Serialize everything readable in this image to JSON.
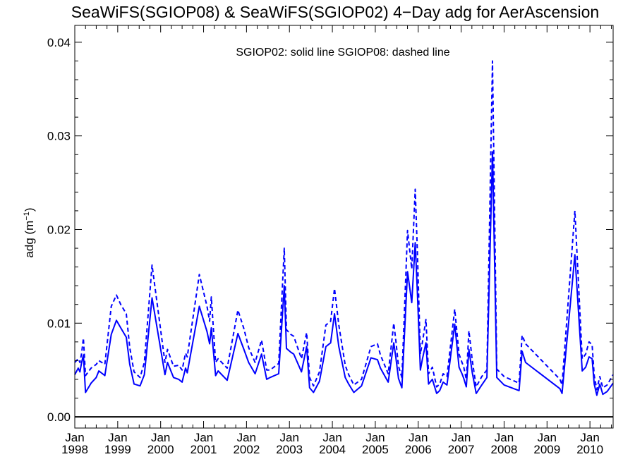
{
  "chart_data": {
    "type": "line",
    "title": "SeaWiFS(SGIOP08) & SeaWiFS(SGIOP02) 4−Day adg for AerAscension",
    "annotation": "SGIOP02: solid line   SGIOP08: dashed line",
    "ylabel": "adg (m",
    "ylabel_unit_exp": "−1",
    "ylabel_close": ")",
    "xlabel": "",
    "xlim": [
      1998.0,
      2010.54
    ],
    "ylim": [
      -0.0012,
      0.0418
    ],
    "grid": false,
    "yticks": [
      {
        "value": 0.0,
        "label": "0.00"
      },
      {
        "value": 0.01,
        "label": "0.01"
      },
      {
        "value": 0.02,
        "label": "0.02"
      },
      {
        "value": 0.03,
        "label": "0.03"
      },
      {
        "value": 0.04,
        "label": "0.04"
      }
    ],
    "xticks": [
      {
        "value": 1998,
        "month": "Jan",
        "year": "1998"
      },
      {
        "value": 1999,
        "month": "Jan",
        "year": "1999"
      },
      {
        "value": 2000,
        "month": "Jan",
        "year": "2000"
      },
      {
        "value": 2001,
        "month": "Jan",
        "year": "2001"
      },
      {
        "value": 2002,
        "month": "Jan",
        "year": "2002"
      },
      {
        "value": 2003,
        "month": "Jan",
        "year": "2003"
      },
      {
        "value": 2004,
        "month": "Jan",
        "year": "2004"
      },
      {
        "value": 2005,
        "month": "Jan",
        "year": "2005"
      },
      {
        "value": 2006,
        "month": "Jan",
        "year": "2006"
      },
      {
        "value": 2007,
        "month": "Jan",
        "year": "2007"
      },
      {
        "value": 2008,
        "month": "Jan",
        "year": "2008"
      },
      {
        "value": 2009,
        "month": "Jan",
        "year": "2009"
      },
      {
        "value": 2010,
        "month": "Jan",
        "year": "2010"
      }
    ],
    "reference_line_y": 0.0,
    "colors": {
      "series": "#0000ff",
      "axes": "#000000",
      "zero_line": "#000000"
    },
    "series": [
      {
        "style": "solid",
        "x": [
          1998.0,
          1998.08,
          1998.12,
          1998.16,
          1998.2,
          1998.25,
          1998.38,
          1998.5,
          1998.56,
          1998.7,
          1998.85,
          1998.97,
          1999.07,
          1999.2,
          1999.28,
          1999.38,
          1999.52,
          1999.62,
          1999.8,
          2000.1,
          2000.16,
          2000.3,
          2000.42,
          2000.5,
          2000.58,
          2000.62,
          2000.9,
          2001.08,
          2001.14,
          2001.18,
          2001.28,
          2001.34,
          2001.55,
          2001.8,
          2001.94,
          2002.05,
          2002.2,
          2002.35,
          2002.47,
          2002.55,
          2002.75,
          2002.88,
          2002.93,
          2003.03,
          2003.1,
          2003.28,
          2003.4,
          2003.47,
          2003.56,
          2003.7,
          2003.85,
          2003.96,
          2004.05,
          2004.15,
          2004.3,
          2004.38,
          2004.5,
          2004.68,
          2004.9,
          2005.05,
          2005.12,
          2005.3,
          2005.43,
          2005.48,
          2005.54,
          2005.62,
          2005.67,
          2005.75,
          2005.85,
          2005.93,
          2005.98,
          2006.05,
          2006.1,
          2006.18,
          2006.24,
          2006.33,
          2006.43,
          2006.5,
          2006.58,
          2006.67,
          2006.85,
          2006.95,
          2007.02,
          2007.06,
          2007.12,
          2007.18,
          2007.26,
          2007.35,
          2007.48,
          2007.6,
          2007.73,
          2007.83,
          2008.0,
          2008.35,
          2008.42,
          2008.5,
          2009.3,
          2009.35,
          2009.65,
          2009.82,
          2009.9,
          2009.98,
          2010.05,
          2010.1,
          2010.16,
          2010.23,
          2010.3,
          2010.4,
          2010.54
        ],
        "y": [
          0.0045,
          0.0052,
          0.0048,
          0.0058,
          0.0066,
          0.0026,
          0.0036,
          0.0042,
          0.0049,
          0.0044,
          0.0088,
          0.0103,
          0.0095,
          0.0085,
          0.0056,
          0.0035,
          0.0033,
          0.0045,
          0.0127,
          0.0045,
          0.0058,
          0.0042,
          0.004,
          0.0037,
          0.0052,
          0.0047,
          0.0118,
          0.0091,
          0.0078,
          0.0095,
          0.0044,
          0.0049,
          0.0039,
          0.0089,
          0.0072,
          0.0058,
          0.0046,
          0.0067,
          0.004,
          0.0042,
          0.0046,
          0.014,
          0.0073,
          0.0069,
          0.0067,
          0.0048,
          0.0075,
          0.0031,
          0.0026,
          0.0038,
          0.0075,
          0.0079,
          0.011,
          0.0075,
          0.0042,
          0.0035,
          0.0026,
          0.0033,
          0.0063,
          0.0061,
          0.0052,
          0.0037,
          0.0079,
          0.0063,
          0.0041,
          0.0031,
          0.0079,
          0.0155,
          0.0122,
          0.0186,
          0.0134,
          0.005,
          0.0062,
          0.0079,
          0.0035,
          0.004,
          0.0025,
          0.0028,
          0.0037,
          0.0034,
          0.0099,
          0.0053,
          0.0046,
          0.0041,
          0.0032,
          0.0072,
          0.0047,
          0.0025,
          0.0034,
          0.0042,
          0.0283,
          0.0042,
          0.0034,
          0.0028,
          0.007,
          0.0058,
          0.003,
          0.0025,
          0.0173,
          0.0049,
          0.0053,
          0.0064,
          0.0062,
          0.0035,
          0.0023,
          0.0035,
          0.0024,
          0.0027,
          0.0036
        ]
      },
      {
        "style": "dashed",
        "x": [
          1998.0,
          1998.08,
          1998.12,
          1998.16,
          1998.2,
          1998.25,
          1998.38,
          1998.5,
          1998.56,
          1998.7,
          1998.85,
          1998.97,
          1999.07,
          1999.2,
          1999.28,
          1999.38,
          1999.52,
          1999.62,
          1999.8,
          2000.1,
          2000.16,
          2000.3,
          2000.42,
          2000.5,
          2000.58,
          2000.62,
          2000.9,
          2001.08,
          2001.14,
          2001.18,
          2001.28,
          2001.34,
          2001.55,
          2001.8,
          2001.94,
          2002.05,
          2002.2,
          2002.35,
          2002.47,
          2002.55,
          2002.75,
          2002.88,
          2002.93,
          2003.03,
          2003.1,
          2003.28,
          2003.4,
          2003.47,
          2003.56,
          2003.7,
          2003.85,
          2003.96,
          2004.05,
          2004.15,
          2004.3,
          2004.38,
          2004.5,
          2004.68,
          2004.9,
          2005.05,
          2005.12,
          2005.3,
          2005.43,
          2005.48,
          2005.54,
          2005.62,
          2005.67,
          2005.75,
          2005.85,
          2005.93,
          2005.98,
          2006.05,
          2006.1,
          2006.18,
          2006.24,
          2006.33,
          2006.43,
          2006.5,
          2006.58,
          2006.67,
          2006.85,
          2006.95,
          2007.02,
          2007.06,
          2007.12,
          2007.18,
          2007.26,
          2007.35,
          2007.48,
          2007.6,
          2007.73,
          2007.83,
          2008.0,
          2008.35,
          2008.42,
          2008.5,
          2009.3,
          2009.35,
          2009.65,
          2009.82,
          2009.9,
          2009.98,
          2010.05,
          2010.1,
          2010.16,
          2010.23,
          2010.3,
          2010.4,
          2010.54
        ],
        "y": [
          0.0058,
          0.0062,
          0.0058,
          0.0068,
          0.0084,
          0.0044,
          0.0052,
          0.0056,
          0.006,
          0.0056,
          0.0118,
          0.013,
          0.012,
          0.011,
          0.0074,
          0.0048,
          0.0042,
          0.0058,
          0.0162,
          0.0058,
          0.0072,
          0.0054,
          0.0055,
          0.005,
          0.0068,
          0.0064,
          0.0152,
          0.0118,
          0.0102,
          0.0128,
          0.0058,
          0.0062,
          0.0052,
          0.0114,
          0.0094,
          0.0074,
          0.0058,
          0.0082,
          0.005,
          0.005,
          0.0057,
          0.018,
          0.0093,
          0.0088,
          0.0086,
          0.0062,
          0.009,
          0.0042,
          0.0033,
          0.0048,
          0.0098,
          0.0102,
          0.0137,
          0.0098,
          0.0055,
          0.0045,
          0.0034,
          0.004,
          0.0075,
          0.0078,
          0.0066,
          0.0046,
          0.01,
          0.0081,
          0.0054,
          0.0042,
          0.0102,
          0.0199,
          0.0158,
          0.0243,
          0.0178,
          0.0067,
          0.008,
          0.0104,
          0.0046,
          0.0053,
          0.0032,
          0.0035,
          0.0046,
          0.0043,
          0.0115,
          0.0067,
          0.0058,
          0.0053,
          0.004,
          0.0092,
          0.006,
          0.0032,
          0.0043,
          0.005,
          0.038,
          0.0051,
          0.0043,
          0.0036,
          0.0087,
          0.0078,
          0.004,
          0.0034,
          0.022,
          0.0062,
          0.0067,
          0.008,
          0.0077,
          0.0044,
          0.0029,
          0.0043,
          0.0031,
          0.0034,
          0.0045
        ]
      }
    ]
  }
}
